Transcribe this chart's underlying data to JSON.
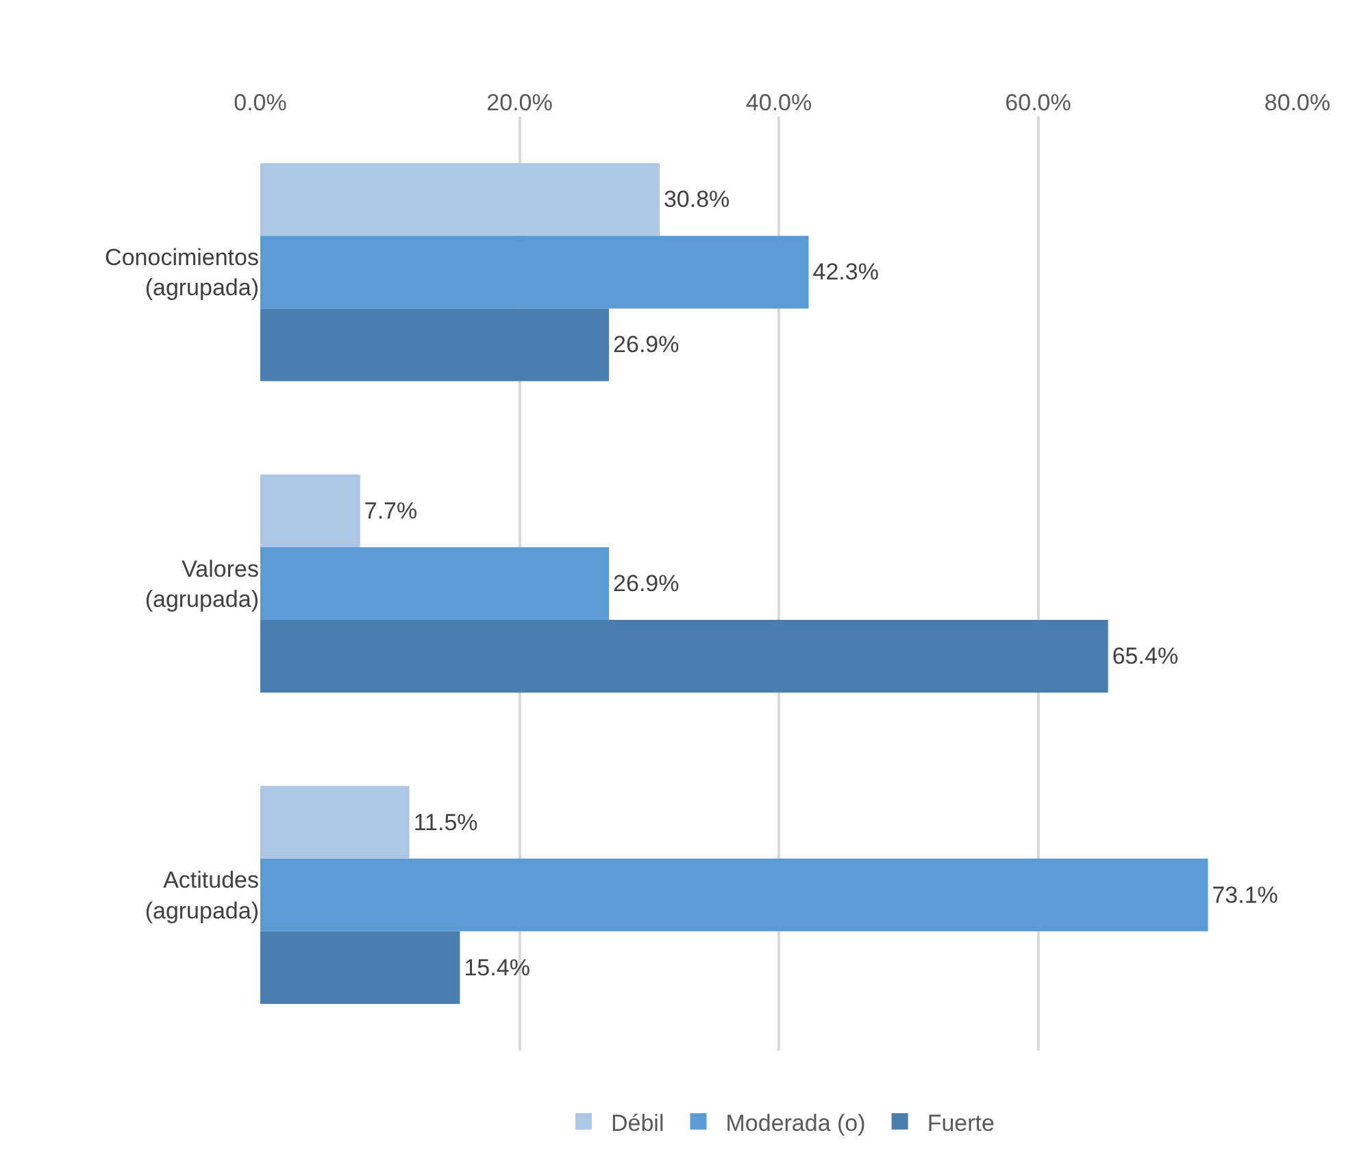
{
  "chart_data": {
    "type": "bar",
    "orientation": "horizontal",
    "categories": [
      "Conocimientos (agrupada)",
      "Valores (agrupada)",
      "Actitudes (agrupada)"
    ],
    "series": [
      {
        "name": "Débil",
        "color": "#adc6e6",
        "values": [
          30.8,
          7.7,
          11.5
        ],
        "value_labels": [
          "30.8%",
          "7.7%",
          "11.5%"
        ]
      },
      {
        "name": "Moderada (o)",
        "color": "#5b9bd5",
        "values": [
          42.3,
          26.9,
          73.1
        ],
        "value_labels": [
          "42.3%",
          "26.9%",
          "73.1%"
        ]
      },
      {
        "name": "Fuerte",
        "color": "#4a7eb0",
        "values": [
          26.9,
          65.4,
          15.4
        ],
        "value_labels": [
          "26.9%",
          "65.4%",
          "15.4%"
        ]
      }
    ],
    "xlim": [
      0,
      80
    ],
    "xticks": [
      {
        "value": 0,
        "label": "0.0%"
      },
      {
        "value": 20,
        "label": "20.0%"
      },
      {
        "value": 40,
        "label": "40.0%"
      },
      {
        "value": 60,
        "label": "60.0%"
      },
      {
        "value": 80,
        "label": "80.0%"
      }
    ],
    "grid": "x",
    "legend": "bottom"
  }
}
